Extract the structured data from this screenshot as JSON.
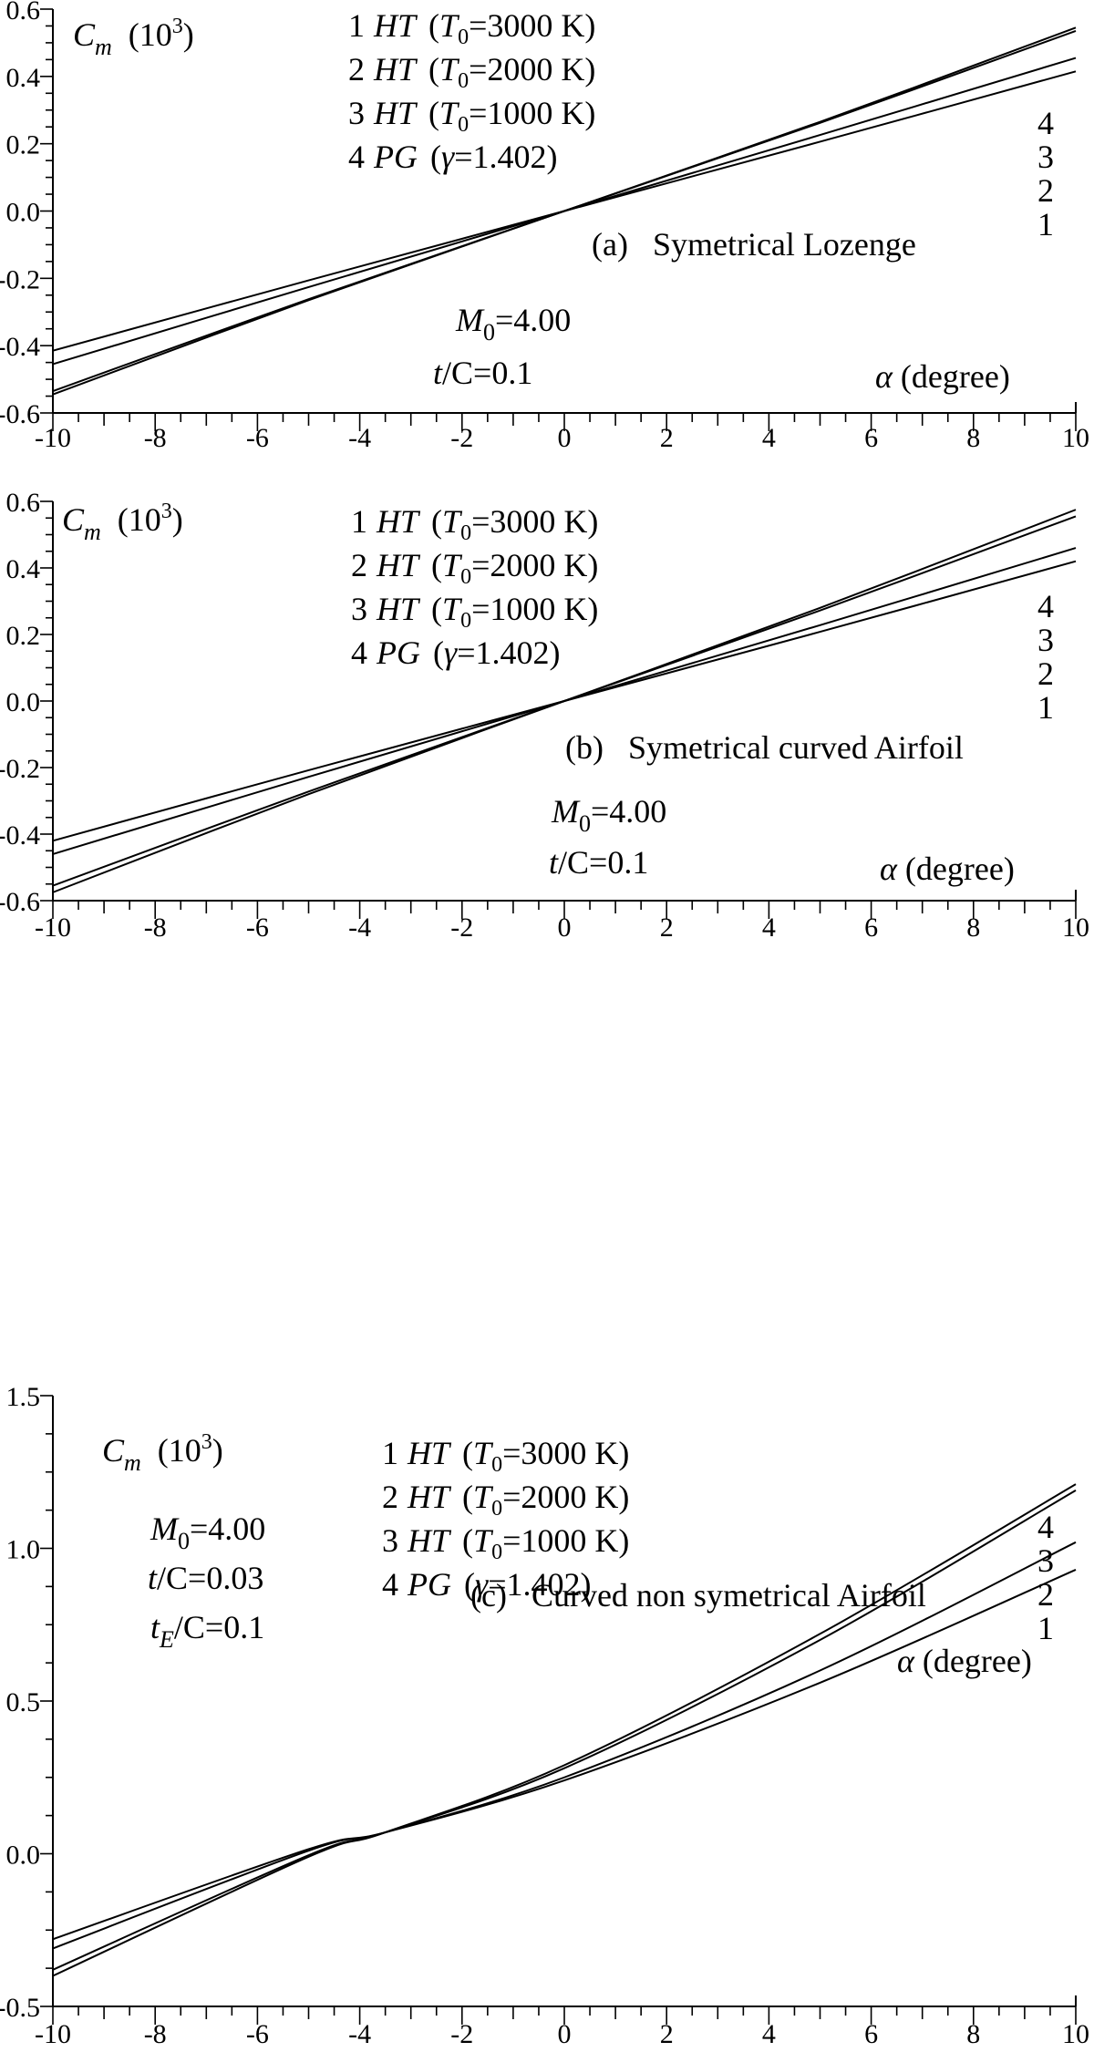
{
  "figure": {
    "panels": [
      {
        "id": "a",
        "ylabel_var": "C",
        "ylabel_sub": "m",
        "ylabel_scale": "(10",
        "ylabel_exp": "3",
        "ylabel_close": ")",
        "xlabel_sym": "α",
        "xlabel_text": " (degree)",
        "caption": "(a)   Symetrical Lozenge",
        "legend": [
          {
            "num": "1",
            "model": "HT",
            "param_sym": "T",
            "param_sub": "0",
            "param_val": "=3000 K)"
          },
          {
            "num": "2",
            "model": "HT",
            "param_sym": "T",
            "param_sub": "0",
            "param_val": "=2000 K)"
          },
          {
            "num": "3",
            "model": "HT",
            "param_sym": "T",
            "param_sub": "0",
            "param_val": "=1000 K)"
          },
          {
            "num": "4",
            "model": "PG",
            "param_sym": "γ",
            "param_sub": "",
            "param_val": "=1.402)"
          }
        ],
        "side_labels": [
          "4",
          "3",
          "2",
          "1"
        ],
        "params": [
          {
            "var": "M",
            "sub": "0",
            "val": "=4.00"
          },
          {
            "var": "t",
            "sub": "",
            "val": "/C=0.1"
          }
        ]
      },
      {
        "id": "b",
        "ylabel_var": "C",
        "ylabel_sub": "m",
        "ylabel_scale": "(10",
        "ylabel_exp": "3",
        "ylabel_close": ")",
        "xlabel_sym": "α",
        "xlabel_text": " (degree)",
        "caption": "(b)   Symetrical curved Airfoil",
        "legend": [
          {
            "num": "1",
            "model": "HT",
            "param_sym": "T",
            "param_sub": "0",
            "param_val": "=3000 K)"
          },
          {
            "num": "2",
            "model": "HT",
            "param_sym": "T",
            "param_sub": "0",
            "param_val": "=2000 K)"
          },
          {
            "num": "3",
            "model": "HT",
            "param_sym": "T",
            "param_sub": "0",
            "param_val": "=1000 K)"
          },
          {
            "num": "4",
            "model": "PG",
            "param_sym": "γ",
            "param_sub": "",
            "param_val": "=1.402)"
          }
        ],
        "side_labels": [
          "4",
          "3",
          "2",
          "1"
        ],
        "params": [
          {
            "var": "M",
            "sub": "0",
            "val": "=4.00"
          },
          {
            "var": "t",
            "sub": "",
            "val": "/C=0.1"
          }
        ]
      },
      {
        "id": "c",
        "ylabel_var": "C",
        "ylabel_sub": "m",
        "ylabel_scale": "(10",
        "ylabel_exp": "3",
        "ylabel_close": ")",
        "xlabel_sym": "α",
        "xlabel_text": " (degree)",
        "caption": "(c)   Curved non symetrical Airfoil",
        "legend": [
          {
            "num": "1",
            "model": "HT",
            "param_sym": "T",
            "param_sub": "0",
            "param_val": "=3000 K)"
          },
          {
            "num": "2",
            "model": "HT",
            "param_sym": "T",
            "param_sub": "0",
            "param_val": "=2000 K)"
          },
          {
            "num": "3",
            "model": "HT",
            "param_sym": "T",
            "param_sub": "0",
            "param_val": "=1000 K)"
          },
          {
            "num": "4",
            "model": "PG",
            "param_sym": "γ",
            "param_sub": "",
            "param_val": "=1.402)"
          }
        ],
        "side_labels": [
          "4",
          "3",
          "2",
          "1"
        ],
        "params": [
          {
            "var": "M",
            "sub": "0",
            "val": "=4.00"
          },
          {
            "var": "t",
            "sub": "",
            "val": "/C=0.03"
          },
          {
            "var": "t",
            "sub": "E",
            "val": "/C=0.1"
          }
        ]
      }
    ]
  },
  "chart_data": [
    {
      "type": "line",
      "title": "",
      "xlabel": "α (degree)",
      "ylabel": "Cm (10^3)",
      "xlim": [
        -10,
        10
      ],
      "ylim": [
        -0.6,
        0.6
      ],
      "x_ticks": [
        -10,
        -8,
        -6,
        -4,
        -2,
        0,
        2,
        4,
        6,
        8,
        10
      ],
      "y_ticks": [
        -0.6,
        -0.4,
        -0.2,
        0.0,
        0.2,
        0.4,
        0.6
      ],
      "y_tick_labels": [
        "-0.6",
        "-0.4",
        "-0.2",
        "0.0",
        "0.2",
        "0.4",
        "0.6"
      ],
      "grid": false,
      "legend_position": "top-center",
      "series": [
        {
          "name": "1 HT (T0=3000 K)",
          "x": [
            -10,
            -5,
            0,
            5,
            10
          ],
          "y": [
            -0.415,
            -0.206,
            0,
            0.206,
            0.415
          ]
        },
        {
          "name": "2 HT (T0=2000 K)",
          "x": [
            -10,
            -5,
            0,
            5,
            10
          ],
          "y": [
            -0.455,
            -0.226,
            0,
            0.226,
            0.455
          ]
        },
        {
          "name": "3 HT (T0=1000 K)",
          "x": [
            -10,
            -5,
            0,
            5,
            10
          ],
          "y": [
            -0.535,
            -0.262,
            0,
            0.262,
            0.535
          ]
        },
        {
          "name": "4 PG (γ=1.402)",
          "x": [
            -10,
            -5,
            0,
            5,
            10
          ],
          "y": [
            -0.545,
            -0.265,
            0,
            0.265,
            0.545
          ]
        }
      ]
    },
    {
      "type": "line",
      "title": "",
      "xlabel": "α (degree)",
      "ylabel": "Cm (10^3)",
      "xlim": [
        -10,
        10
      ],
      "ylim": [
        -0.6,
        0.6
      ],
      "x_ticks": [
        -10,
        -8,
        -6,
        -4,
        -2,
        0,
        2,
        4,
        6,
        8,
        10
      ],
      "y_ticks": [
        -0.6,
        -0.4,
        -0.2,
        0.0,
        0.2,
        0.4,
        0.6
      ],
      "y_tick_labels": [
        "-0.6",
        "-0.4",
        "-0.2",
        "0.0",
        "0.2",
        "0.4",
        "0.6"
      ],
      "grid": false,
      "legend_position": "top-center",
      "series": [
        {
          "name": "1 HT (T0=3000 K)",
          "x": [
            -10,
            -5,
            0,
            5,
            10
          ],
          "y": [
            -0.42,
            -0.208,
            0,
            0.208,
            0.42
          ]
        },
        {
          "name": "2 HT (T0=2000 K)",
          "x": [
            -10,
            -5,
            0,
            5,
            10
          ],
          "y": [
            -0.46,
            -0.228,
            0,
            0.228,
            0.46
          ]
        },
        {
          "name": "3 HT (T0=1000 K)",
          "x": [
            -10,
            -5,
            0,
            5,
            10
          ],
          "y": [
            -0.555,
            -0.272,
            0,
            0.272,
            0.555
          ]
        },
        {
          "name": "4 PG (γ=1.402)",
          "x": [
            -10,
            -5,
            0,
            5,
            10
          ],
          "y": [
            -0.575,
            -0.28,
            0,
            0.28,
            0.575
          ]
        }
      ]
    },
    {
      "type": "line",
      "title": "",
      "xlabel": "α (degree)",
      "ylabel": "Cm (10^3)",
      "xlim": [
        -10,
        10
      ],
      "ylim": [
        -0.5,
        1.5
      ],
      "x_ticks": [
        -10,
        -8,
        -6,
        -4,
        -2,
        0,
        2,
        4,
        6,
        8,
        10
      ],
      "y_ticks": [
        -0.5,
        0.0,
        0.5,
        1.0,
        1.5
      ],
      "y_tick_labels": [
        "-0.5",
        "0.0",
        "0.5",
        "1.0",
        "1.5"
      ],
      "grid": false,
      "legend_position": "top-center",
      "series": [
        {
          "name": "1 HT (T0=3000 K)",
          "x": [
            -10,
            -5,
            -3.5,
            0,
            5,
            10
          ],
          "y": [
            -0.28,
            0.015,
            0.07,
            0.24,
            0.56,
            0.93
          ]
        },
        {
          "name": "2 HT (T0=2000 K)",
          "x": [
            -10,
            -5,
            -3.5,
            0,
            5,
            10
          ],
          "y": [
            -0.31,
            0.01,
            0.07,
            0.25,
            0.6,
            1.02
          ]
        },
        {
          "name": "3 HT (T0=1000 K)",
          "x": [
            -10,
            -5,
            -3.5,
            0,
            5,
            10
          ],
          "y": [
            -0.38,
            -0.005,
            0.07,
            0.28,
            0.7,
            1.19
          ]
        },
        {
          "name": "4 PG (γ=1.402)",
          "x": [
            -10,
            -5,
            -3.5,
            0,
            5,
            10
          ],
          "y": [
            -0.4,
            -0.01,
            0.07,
            0.29,
            0.72,
            1.21
          ]
        }
      ]
    }
  ]
}
